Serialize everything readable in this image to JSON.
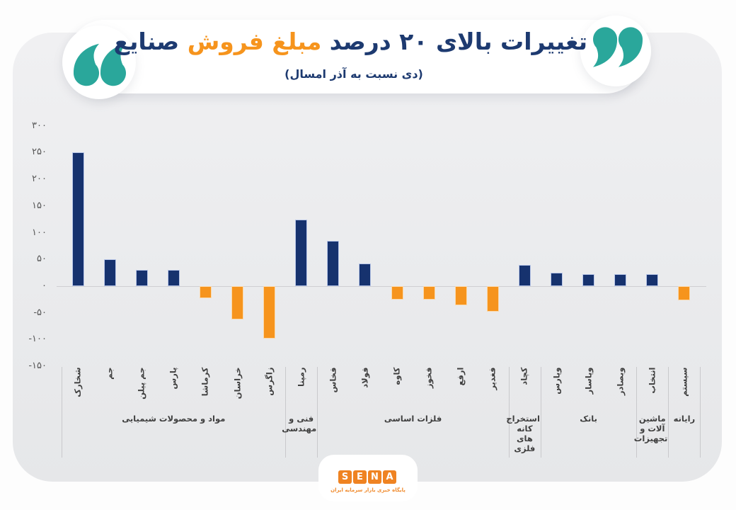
{
  "title": {
    "part1": "تغییرات بالای ۲۰ درصد",
    "part2": "مبلغ فروش",
    "part3": "صنایع",
    "subtitle": "(دی نسبت به آذر امسال)"
  },
  "colors": {
    "title_navy": "#1d3a70",
    "accent_orange": "#f6941d",
    "quote_teal": "#2aa79b",
    "bar_positive": "#16326e",
    "bar_negative": "#f6941d",
    "logo_orange": "#ef8322"
  },
  "chart_data": {
    "type": "bar",
    "title": "تغییرات بالای ۲۰ درصد مبلغ فروش صنایع",
    "subtitle": "(دی نسبت به آذر امسال)",
    "ylabel": "",
    "xlabel": "",
    "ylim": [
      -150,
      300
    ],
    "grid": false,
    "legend": false,
    "positive_color": "#16326e",
    "negative_color": "#f6941d",
    "yticks": [
      {
        "label": "۳۰۰",
        "value": 300
      },
      {
        "label": "۲۵۰",
        "value": 250
      },
      {
        "label": "۲۰۰",
        "value": 200
      },
      {
        "label": "۱۵۰",
        "value": 150
      },
      {
        "label": "۱۰۰",
        "value": 100
      },
      {
        "label": "۵۰",
        "value": 50
      },
      {
        "label": "۰",
        "value": 0
      },
      {
        "label": "-۵۰",
        "value": -50
      },
      {
        "label": "-۱۰۰",
        "value": -100
      },
      {
        "label": "-۱۵۰",
        "value": -150
      }
    ],
    "bars": [
      {
        "label": "شخارک",
        "value": 250
      },
      {
        "label": "جم",
        "value": 50
      },
      {
        "label": "جم پیلن",
        "value": 30
      },
      {
        "label": "پارس",
        "value": 30
      },
      {
        "label": "کرماشا",
        "value": -22
      },
      {
        "label": "خراسان",
        "value": -62
      },
      {
        "label": "زاگرس",
        "value": -98
      },
      {
        "label": "رمپنا",
        "value": 125
      },
      {
        "label": "فخاس",
        "value": 85
      },
      {
        "label": "فولاد",
        "value": 42
      },
      {
        "label": "کاوه",
        "value": -25
      },
      {
        "label": "فخوز",
        "value": -25
      },
      {
        "label": "ارفع",
        "value": -36
      },
      {
        "label": "فغدیر",
        "value": -48
      },
      {
        "label": "کچاد",
        "value": 40
      },
      {
        "label": "وپارس",
        "value": 25
      },
      {
        "label": "وپاسار",
        "value": 22
      },
      {
        "label": "وبصادر",
        "value": 22
      },
      {
        "label": "انتخاب",
        "value": 22
      },
      {
        "label": "سیستم",
        "value": -27
      }
    ],
    "groups": [
      {
        "label": "مواد و محصولات شیمیایی",
        "lines": [
          "مواد و محصولات شیمیایی"
        ],
        "count": 7
      },
      {
        "label": "فنی و مهندسی",
        "lines": [
          "فنی و",
          "مهندسی"
        ],
        "count": 1
      },
      {
        "label": "فلزات اساسی",
        "lines": [
          "فلزات اساسی"
        ],
        "count": 6
      },
      {
        "label": "استخراج کانه های فلزی",
        "lines": [
          "استخراج",
          "کانه های",
          "فلزی"
        ],
        "count": 1
      },
      {
        "label": "بانک",
        "lines": [
          "بانک"
        ],
        "count": 3
      },
      {
        "label": "ماشین آلات و تجهیزات",
        "lines": [
          "ماشین",
          "آلات و",
          "تجهیزات"
        ],
        "count": 1
      },
      {
        "label": "رایانه",
        "lines": [
          "رایانه"
        ],
        "count": 1
      }
    ]
  },
  "footer": {
    "logo_letters": [
      "S",
      "E",
      "N",
      "A"
    ],
    "logo_caption": "پایگاه خبری بازار سرمایه ایران"
  }
}
